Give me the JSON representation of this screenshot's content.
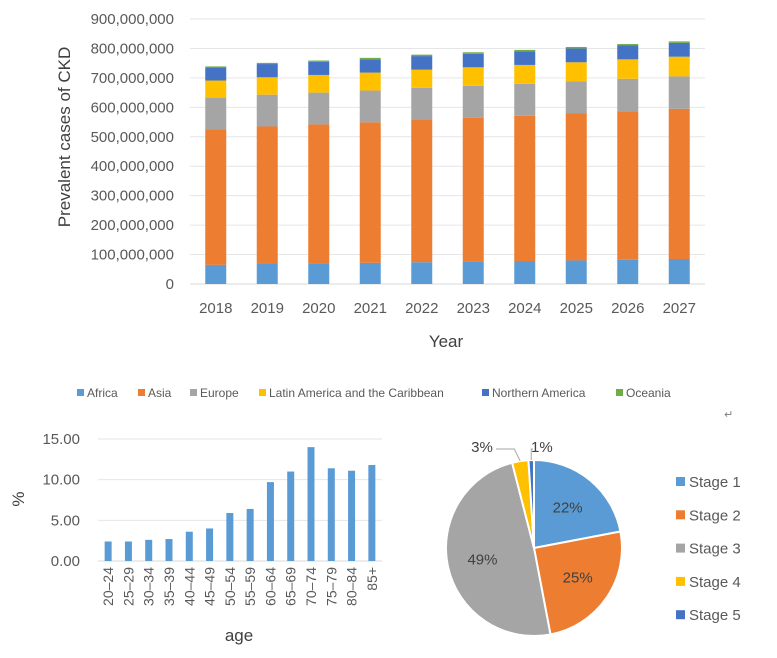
{
  "chart_data": [
    {
      "type": "bar",
      "stacked": true,
      "title": "",
      "xlabel": "Year",
      "ylabel": "Prevalent cases of CKD",
      "ylim": [
        0,
        900000000
      ],
      "yticks": [
        "0",
        "100,000,000",
        "200,000,000",
        "300,000,000",
        "400,000,000",
        "500,000,000",
        "600,000,000",
        "700,000,000",
        "800,000,000",
        "900,000,000"
      ],
      "ytick_values": [
        0,
        100000000,
        200000000,
        300000000,
        400000000,
        500000000,
        600000000,
        700000000,
        800000000,
        900000000
      ],
      "categories": [
        "2018",
        "2019",
        "2020",
        "2021",
        "2022",
        "2023",
        "2024",
        "2025",
        "2026",
        "2027"
      ],
      "series": [
        {
          "name": "Africa",
          "color": "#5B9BD5",
          "values": [
            65000000,
            68000000,
            70000000,
            72000000,
            74000000,
            76000000,
            78000000,
            80000000,
            82000000,
            85000000
          ]
        },
        {
          "name": "Asia",
          "color": "#ED7D31",
          "values": [
            460000000,
            467000000,
            472000000,
            477000000,
            483000000,
            488000000,
            493000000,
            499000000,
            505000000,
            510000000
          ]
        },
        {
          "name": "Europe",
          "color": "#A5A5A5",
          "values": [
            108000000,
            108000000,
            108000000,
            108000000,
            109000000,
            109000000,
            109000000,
            109000000,
            110000000,
            110000000
          ]
        },
        {
          "name": "Latin America and the Caribbean",
          "color": "#FFC000",
          "values": [
            58000000,
            59000000,
            60000000,
            61000000,
            62000000,
            63000000,
            64000000,
            65000000,
            66000000,
            67000000
          ]
        },
        {
          "name": "Northern America",
          "color": "#4472C4",
          "values": [
            44000000,
            45000000,
            45000000,
            45000000,
            46000000,
            46000000,
            46000000,
            47000000,
            47000000,
            47000000
          ]
        },
        {
          "name": "Oceania",
          "color": "#70AD47",
          "values": [
            4000000,
            4000000,
            4000000,
            5000000,
            5000000,
            5000000,
            5000000,
            5000000,
            5000000,
            5000000
          ]
        }
      ],
      "legend": "bottom"
    },
    {
      "type": "bar",
      "title": "",
      "xlabel": "age",
      "ylabel": "%",
      "ylim": [
        0,
        15
      ],
      "yticks": [
        "0.00",
        "5.00",
        "10.00",
        "15.00"
      ],
      "ytick_values": [
        0,
        5,
        10,
        15
      ],
      "categories": [
        "20–24",
        "25–29",
        "30–34",
        "35–39",
        "40–44",
        "45–49",
        "50–54",
        "55–59",
        "60–64",
        "65–69",
        "70–74",
        "75–79",
        "80–84",
        "85+"
      ],
      "values": [
        2.4,
        2.4,
        2.6,
        2.7,
        3.6,
        4.0,
        5.9,
        6.4,
        9.7,
        11.0,
        14.0,
        11.4,
        11.1,
        11.8
      ],
      "color": "#5B9BD5"
    },
    {
      "type": "pie",
      "title": "",
      "slices": [
        {
          "label": "Stage 1",
          "value": 22,
          "text": "22%",
          "color": "#5B9BD5"
        },
        {
          "label": "Stage 2",
          "value": 25,
          "text": "25%",
          "color": "#ED7D31"
        },
        {
          "label": "Stage 3",
          "value": 49,
          "text": "49%",
          "color": "#A5A5A5"
        },
        {
          "label": "Stage 4",
          "value": 3,
          "text": "3%",
          "color": "#FFC000"
        },
        {
          "label": "Stage 5",
          "value": 1,
          "text": "1%",
          "color": "#4472C4"
        }
      ],
      "legend": "right"
    }
  ],
  "page_marks": {
    "return_glyph": "↵"
  }
}
